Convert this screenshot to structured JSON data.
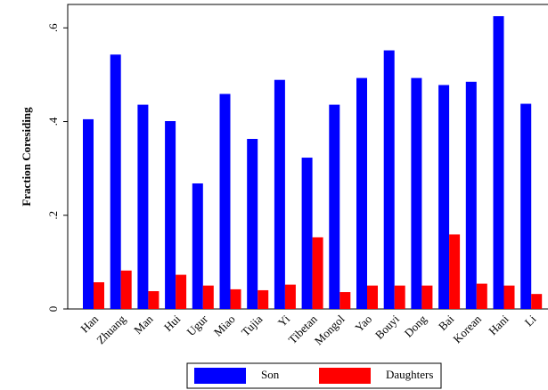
{
  "chart_data": {
    "type": "bar",
    "y_label": "Fraction Coresiding",
    "categories": [
      "Han",
      "Zhuang",
      "Man",
      "Hui",
      "Ugur",
      "Miao",
      "Tujia",
      "Yi",
      "Tibetan",
      "Mongol",
      "Yao",
      "Bouyi",
      "Dong",
      "Bai",
      "Korean",
      "Hani",
      "Li"
    ],
    "series": [
      {
        "name": "Son",
        "color": "#0000ff",
        "values": [
          0.405,
          0.543,
          0.436,
          0.401,
          0.268,
          0.459,
          0.363,
          0.489,
          0.323,
          0.436,
          0.493,
          0.552,
          0.493,
          0.478,
          0.485,
          0.625,
          0.438
        ]
      },
      {
        "name": "Daughters",
        "color": "#ff0000",
        "values": [
          0.057,
          0.082,
          0.038,
          0.073,
          0.05,
          0.042,
          0.04,
          0.052,
          0.153,
          0.036,
          0.05,
          0.05,
          0.05,
          0.159,
          0.054,
          0.05,
          0.032
        ]
      }
    ],
    "ylim": [
      0,
      0.65
    ],
    "yticks": [
      0,
      {
        "value": 0.2,
        "label": ".2"
      },
      {
        "value": 0.4,
        "label": ".4"
      },
      {
        "value": 0.6,
        "label": ".6"
      }
    ],
    "legend": "bottom"
  }
}
